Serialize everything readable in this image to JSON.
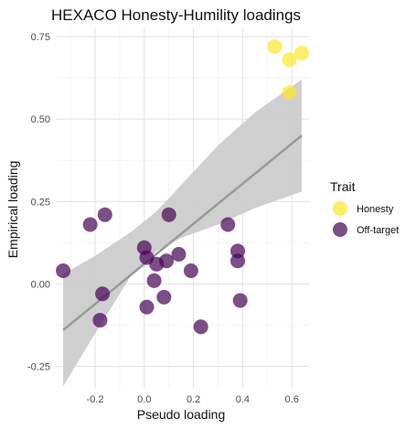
{
  "chart_data": {
    "type": "scatter",
    "title": "HEXACO Honesty-Humility loadings",
    "xlabel": "Pseudo loading",
    "ylabel": "Empirical loading",
    "xlim": [
      -0.36,
      0.67
    ],
    "ylim": [
      -0.315,
      0.775
    ],
    "x_ticks": [
      -0.2,
      0.0,
      0.2,
      0.4,
      0.6
    ],
    "x_tick_labels": [
      "-0.2",
      "0.0",
      "0.2",
      "0.4",
      "0.6"
    ],
    "y_ticks": [
      -0.25,
      0.0,
      0.25,
      0.5,
      0.75
    ],
    "y_tick_labels": [
      "-0.25",
      "0.00",
      "0.25",
      "0.50",
      "0.75"
    ],
    "grid": true,
    "legend": {
      "title": "Trait",
      "position": "right",
      "entries": [
        {
          "label": "Honesty",
          "color": "#fde725"
        },
        {
          "label": "Off-target",
          "color": "#440154"
        }
      ]
    },
    "series": [
      {
        "name": "Honesty",
        "color": "#fde725",
        "points": [
          {
            "x": 0.53,
            "y": 0.72
          },
          {
            "x": 0.59,
            "y": 0.68
          },
          {
            "x": 0.64,
            "y": 0.7
          },
          {
            "x": 0.59,
            "y": 0.58
          }
        ]
      },
      {
        "name": "Off-target",
        "color": "#440154",
        "points": [
          {
            "x": -0.33,
            "y": 0.04
          },
          {
            "x": -0.22,
            "y": 0.18
          },
          {
            "x": -0.16,
            "y": 0.21
          },
          {
            "x": -0.17,
            "y": -0.03
          },
          {
            "x": -0.18,
            "y": -0.11
          },
          {
            "x": 0.0,
            "y": 0.11
          },
          {
            "x": 0.01,
            "y": 0.08
          },
          {
            "x": 0.05,
            "y": 0.06
          },
          {
            "x": 0.09,
            "y": 0.07
          },
          {
            "x": 0.1,
            "y": 0.21
          },
          {
            "x": 0.14,
            "y": 0.09
          },
          {
            "x": 0.04,
            "y": 0.01
          },
          {
            "x": 0.01,
            "y": -0.07
          },
          {
            "x": 0.08,
            "y": -0.04
          },
          {
            "x": 0.19,
            "y": 0.04
          },
          {
            "x": 0.23,
            "y": -0.13
          },
          {
            "x": 0.34,
            "y": 0.18
          },
          {
            "x": 0.38,
            "y": 0.1
          },
          {
            "x": 0.38,
            "y": 0.07
          },
          {
            "x": 0.39,
            "y": -0.05
          }
        ]
      }
    ],
    "trend_line": {
      "method": "linear fit",
      "x": [
        -0.33,
        0.64
      ],
      "y": [
        -0.14,
        0.45
      ],
      "color": "#999999",
      "ci_upper": [
        {
          "x": -0.33,
          "y": 0.03
        },
        {
          "x": -0.2,
          "y": 0.085
        },
        {
          "x": -0.05,
          "y": 0.16
        },
        {
          "x": 0.05,
          "y": 0.22
        },
        {
          "x": 0.15,
          "y": 0.3
        },
        {
          "x": 0.3,
          "y": 0.42
        },
        {
          "x": 0.45,
          "y": 0.52
        },
        {
          "x": 0.64,
          "y": 0.62
        }
      ],
      "ci_lower": [
        {
          "x": -0.33,
          "y": -0.31
        },
        {
          "x": -0.2,
          "y": -0.15
        },
        {
          "x": -0.05,
          "y": 0.03
        },
        {
          "x": 0.05,
          "y": 0.1
        },
        {
          "x": 0.15,
          "y": 0.14
        },
        {
          "x": 0.3,
          "y": 0.18
        },
        {
          "x": 0.45,
          "y": 0.23
        },
        {
          "x": 0.64,
          "y": 0.28
        }
      ],
      "ci_color": "#cccccc"
    }
  }
}
